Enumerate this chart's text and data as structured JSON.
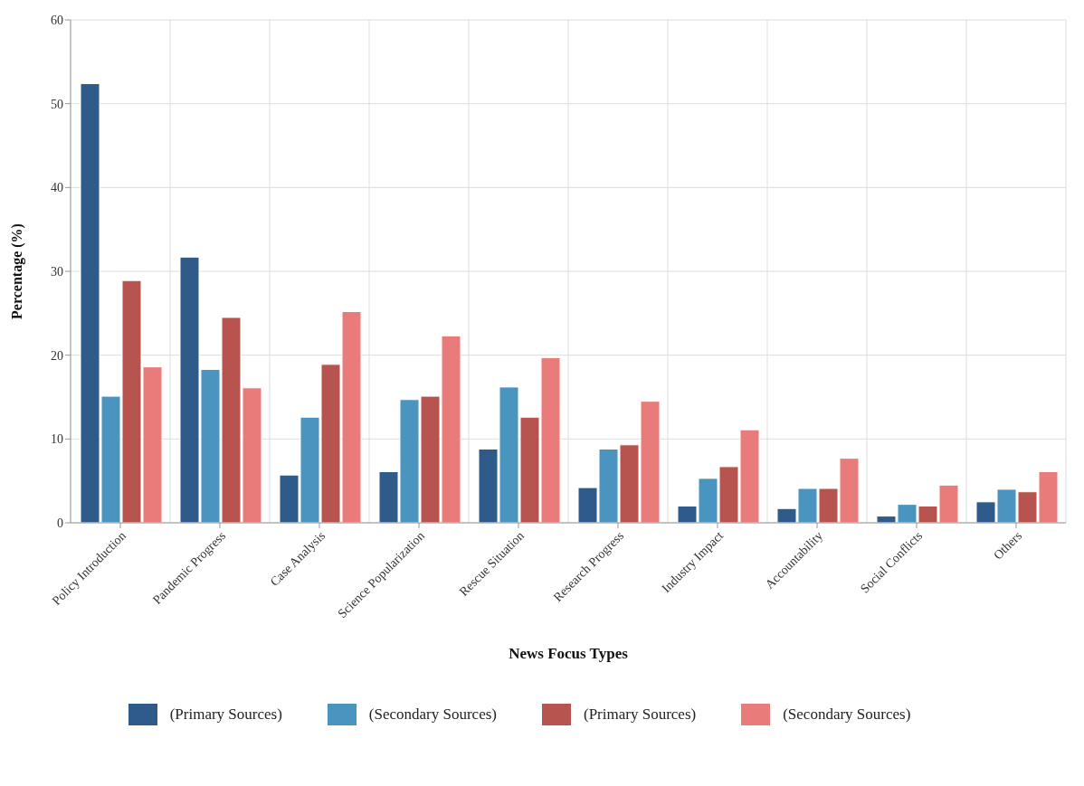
{
  "chart_data": {
    "type": "bar",
    "xlabel": "News Focus Types",
    "ylabel": "Percentage (%)",
    "categories": [
      "Policy Introduction",
      "Pandemic Progress",
      "Case Analysis",
      "Science Popularization",
      "Rescue Situation",
      "Research Progress",
      "Industry Impact",
      "Accountability",
      "Social Conflicts",
      "Others"
    ],
    "series": [
      {
        "name": "(Primary Sources)",
        "color": "#2e5b8a",
        "values": [
          52.4,
          31.7,
          5.7,
          6.1,
          8.8,
          4.2,
          2.0,
          1.7,
          0.8,
          2.5
        ]
      },
      {
        "name": "(Secondary Sources)",
        "color": "#4a94c0",
        "values": [
          15.1,
          18.3,
          12.6,
          14.7,
          16.2,
          8.8,
          5.3,
          4.1,
          2.2,
          4.0
        ]
      },
      {
        "name": "(Primary Sources)",
        "color": "#b85450",
        "values": [
          28.9,
          24.5,
          18.9,
          15.1,
          12.6,
          9.3,
          6.7,
          4.1,
          2.0,
          3.7
        ]
      },
      {
        "name": "(Secondary Sources)",
        "color": "#e97c7a",
        "values": [
          18.6,
          16.1,
          25.2,
          22.3,
          19.7,
          14.5,
          11.1,
          7.7,
          4.5,
          6.1
        ]
      }
    ],
    "ylim": [
      0,
      60
    ],
    "yticks": [
      0,
      10,
      20,
      30,
      40,
      50,
      60
    ],
    "grid": true,
    "legend": "bottom"
  }
}
